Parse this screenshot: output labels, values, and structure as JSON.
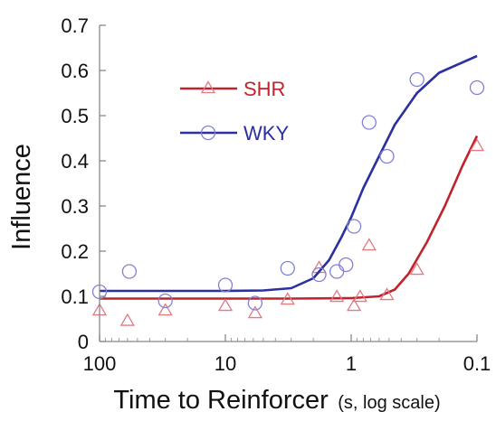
{
  "chart_data": {
    "type": "scatter",
    "xlabel": "Time to Reinforcer",
    "xlabel_unit": "(s, log scale)",
    "ylabel": "Influence",
    "xscale": "log",
    "x_reversed": true,
    "xlim": [
      100,
      0.1
    ],
    "ylim": [
      0,
      0.7
    ],
    "xticks": [
      100,
      10,
      1,
      0.1
    ],
    "xtick_labels": [
      "100",
      "10",
      "1",
      "0.1"
    ],
    "yticks": [
      0,
      0.1,
      0.2,
      0.3,
      0.4,
      0.5,
      0.6,
      0.7
    ],
    "ytick_labels": [
      "0",
      "0.1",
      "0.2",
      "0.3",
      "0.4",
      "0.5",
      "0.6",
      "0.7"
    ],
    "grid": false,
    "legend_position": "upper-left",
    "series": [
      {
        "name": "SHR",
        "color": "#c0232b",
        "marker": "triangle",
        "points": [
          [
            100,
            0.068
          ],
          [
            60,
            0.045
          ],
          [
            30,
            0.068
          ],
          [
            10,
            0.078
          ],
          [
            5.8,
            0.062
          ],
          [
            3.2,
            0.092
          ],
          [
            1.8,
            0.162
          ],
          [
            1.3,
            0.098
          ],
          [
            0.95,
            0.078
          ],
          [
            0.85,
            0.098
          ],
          [
            0.72,
            0.212
          ],
          [
            0.52,
            0.102
          ],
          [
            0.3,
            0.158
          ],
          [
            0.1,
            0.432
          ]
        ],
        "fit": [
          [
            100,
            0.095
          ],
          [
            10,
            0.095
          ],
          [
            3,
            0.095
          ],
          [
            1,
            0.096
          ],
          [
            0.6,
            0.1
          ],
          [
            0.45,
            0.115
          ],
          [
            0.35,
            0.15
          ],
          [
            0.25,
            0.22
          ],
          [
            0.18,
            0.3
          ],
          [
            0.13,
            0.39
          ],
          [
            0.1,
            0.455
          ]
        ]
      },
      {
        "name": "WKY",
        "color": "#2b2fa0",
        "marker": "circle",
        "points": [
          [
            100,
            0.11
          ],
          [
            58,
            0.155
          ],
          [
            30,
            0.09
          ],
          [
            10,
            0.125
          ],
          [
            5.8,
            0.085
          ],
          [
            3.2,
            0.162
          ],
          [
            1.8,
            0.148
          ],
          [
            1.3,
            0.155
          ],
          [
            1.1,
            0.17
          ],
          [
            0.95,
            0.255
          ],
          [
            0.72,
            0.485
          ],
          [
            0.52,
            0.41
          ],
          [
            0.3,
            0.58
          ],
          [
            0.1,
            0.562
          ]
        ],
        "fit": [
          [
            100,
            0.112
          ],
          [
            10,
            0.112
          ],
          [
            5,
            0.113
          ],
          [
            3,
            0.118
          ],
          [
            2,
            0.14
          ],
          [
            1.5,
            0.18
          ],
          [
            1.2,
            0.23
          ],
          [
            1,
            0.275
          ],
          [
            0.8,
            0.34
          ],
          [
            0.6,
            0.41
          ],
          [
            0.45,
            0.48
          ],
          [
            0.3,
            0.55
          ],
          [
            0.2,
            0.595
          ],
          [
            0.1,
            0.632
          ]
        ]
      }
    ]
  }
}
